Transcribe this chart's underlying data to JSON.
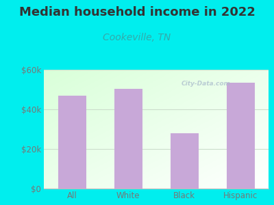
{
  "title": "Median household income in 2022",
  "subtitle": "Cookeville, TN",
  "categories": [
    "All",
    "White",
    "Black",
    "Hispanic"
  ],
  "values": [
    47000,
    50500,
    28000,
    53500
  ],
  "bar_color": "#C8A8D8",
  "background_color": "#00EEEE",
  "title_fontsize": 13,
  "subtitle_fontsize": 10,
  "subtitle_color": "#33AAAA",
  "title_color": "#333333",
  "tick_color": "#777777",
  "ylim": [
    0,
    60000
  ],
  "yticks": [
    0,
    20000,
    40000,
    60000
  ],
  "ytick_labels": [
    "$0",
    "$20k",
    "$40k",
    "$60k"
  ],
  "watermark": "City-Data.com",
  "grid_color": "#CCDDCC"
}
